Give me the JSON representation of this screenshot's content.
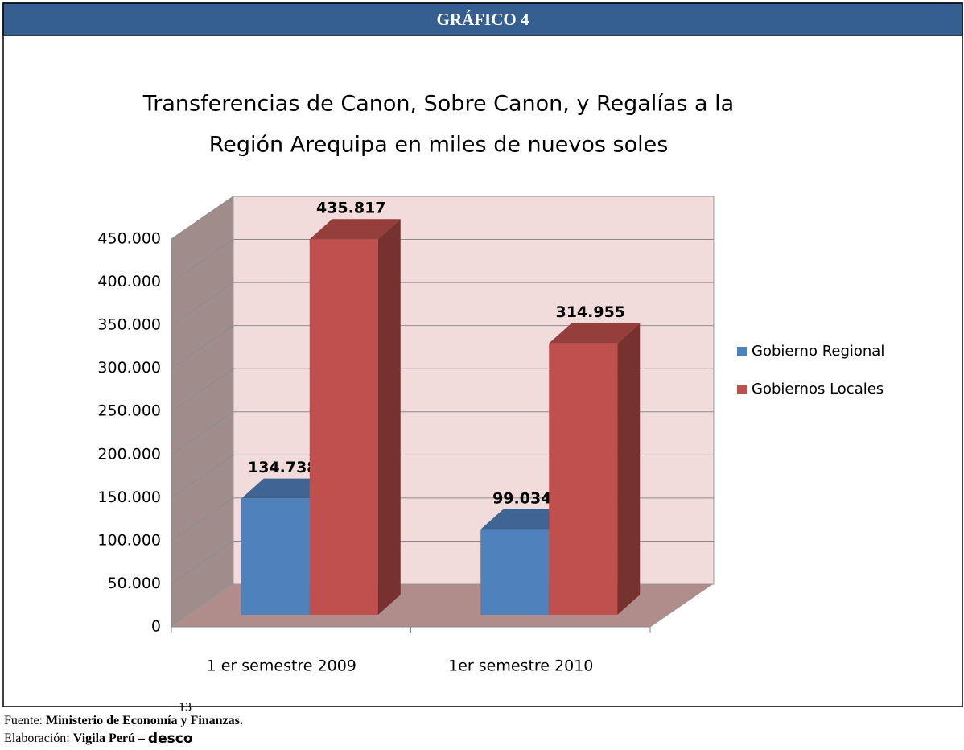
{
  "header": "GRÁFICO 4",
  "chart_data": {
    "type": "bar3d",
    "title": [
      "Transferencias de Canon, Sobre Canon, y Regalías a la",
      "Región Arequipa en miles de nuevos soles"
    ],
    "categories": [
      "1 er semestre 2009",
      "1er semestre 2010"
    ],
    "series": [
      {
        "name": "Gobierno Regional",
        "color": "#4f81bd",
        "values": [
          134738,
          99034
        ],
        "value_labels": [
          "134.738",
          "99.034"
        ]
      },
      {
        "name": "Gobiernos Locales",
        "color": "#c0504d",
        "values": [
          435817,
          314955
        ],
        "value_labels": [
          "435.817",
          "314.955"
        ]
      }
    ],
    "ylim": [
      0,
      450000
    ],
    "yticks": [
      0,
      {
        "value": 50000,
        "label": "50.000"
      },
      {
        "value": 100000,
        "label": "100.000"
      },
      {
        "value": 150000,
        "label": "150.000"
      },
      {
        "value": 200000,
        "label": "200.000"
      },
      {
        "value": 250000,
        "label": "250.000"
      },
      {
        "value": 300000,
        "label": "300.000"
      },
      {
        "value": 350000,
        "label": "350.000"
      },
      {
        "value": 400000,
        "label": "400.000"
      },
      {
        "value": 450000,
        "label": "450.000"
      }
    ],
    "grid": true,
    "legend": "right"
  },
  "source": {
    "label": "Fuente:",
    "value": "Ministerio de Economía y Finanzas."
  },
  "credit": {
    "label": "Elaboración:",
    "value": "Vigila Perú –",
    "brand": "desco"
  },
  "page_number": 13
}
